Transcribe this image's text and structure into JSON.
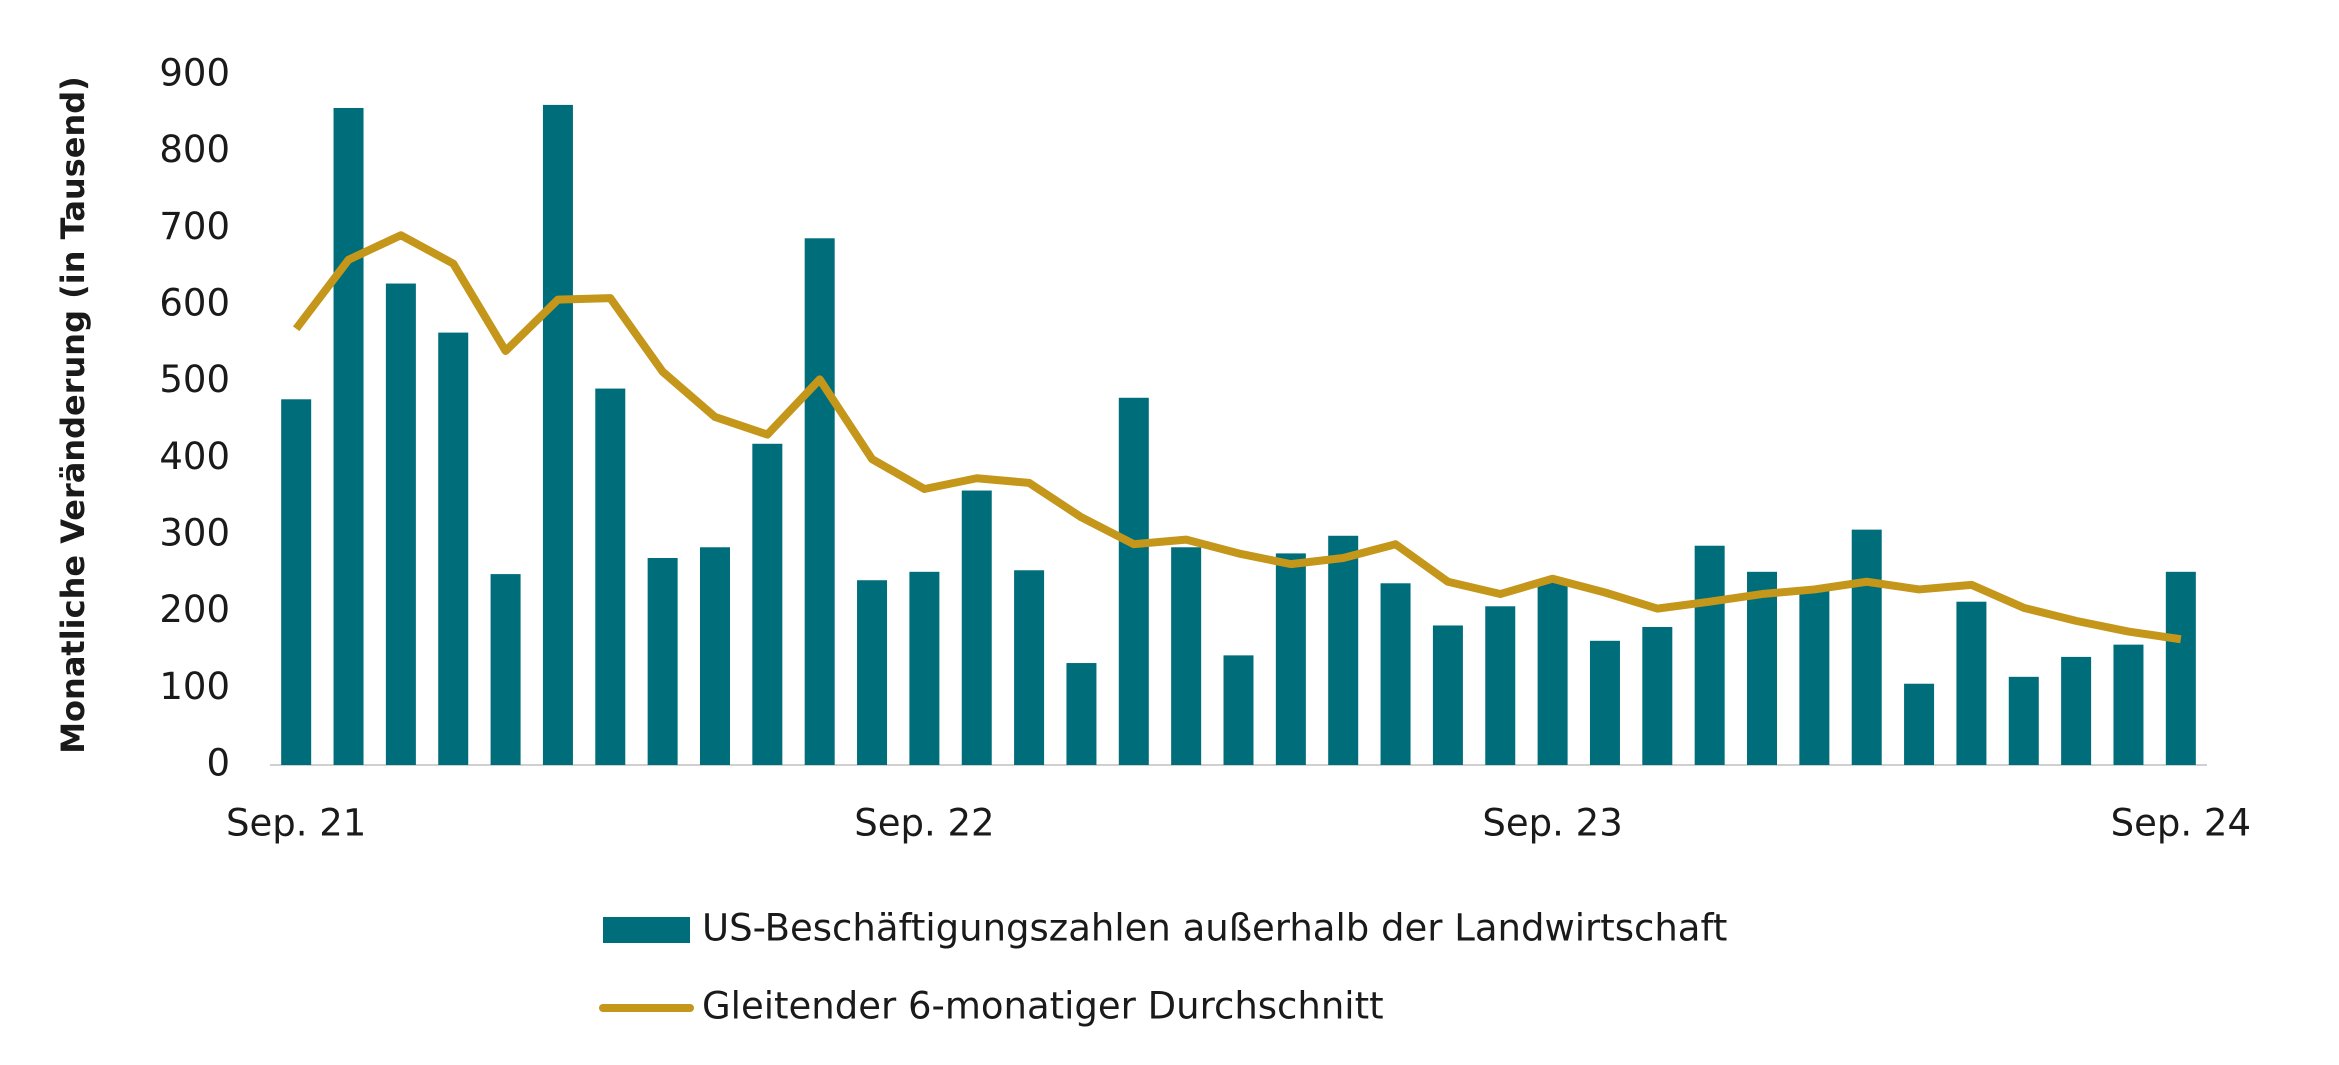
{
  "chart_data": {
    "type": "bar",
    "y_label": "Monatliche Veränderung (in Tausend)",
    "categories": [
      "Sep. 21",
      null,
      null,
      null,
      null,
      null,
      null,
      null,
      null,
      null,
      null,
      null,
      "Sep. 22",
      null,
      null,
      null,
      null,
      null,
      null,
      null,
      null,
      null,
      null,
      null,
      "Sep. 23",
      null,
      null,
      null,
      null,
      null,
      null,
      null,
      null,
      null,
      null,
      null,
      "Sep. 24"
    ],
    "series": [
      {
        "name": "US-Beschäftigungszahlen außerhalb der Landwirtschaft",
        "type": "bar",
        "color": "#006d7a",
        "values": [
          477,
          857,
          628,
          564,
          249,
          861,
          491,
          270,
          284,
          419,
          687,
          241,
          252,
          358,
          254,
          133,
          479,
          284,
          143,
          276,
          299,
          237,
          182,
          207,
          241,
          162,
          180,
          286,
          252,
          231,
          307,
          106,
          213,
          115,
          141,
          157,
          252
        ]
      },
      {
        "name": "Gleitender 6-monatiger Durchschnitt",
        "type": "line",
        "color": "#c4961a",
        "values": [
          569,
          659,
          691,
          654,
          540,
          607,
          609,
          513,
          454,
          431,
          503,
          399,
          360,
          374,
          368,
          323,
          288,
          294,
          276,
          262,
          270,
          288,
          239,
          223,
          243,
          225,
          204,
          213,
          223,
          229,
          239,
          229,
          235,
          205,
          188,
          174,
          164
        ]
      }
    ],
    "ylim": [
      0,
      900
    ],
    "yticks": [
      0,
      100,
      200,
      300,
      400,
      500,
      600,
      700,
      800,
      900
    ]
  }
}
